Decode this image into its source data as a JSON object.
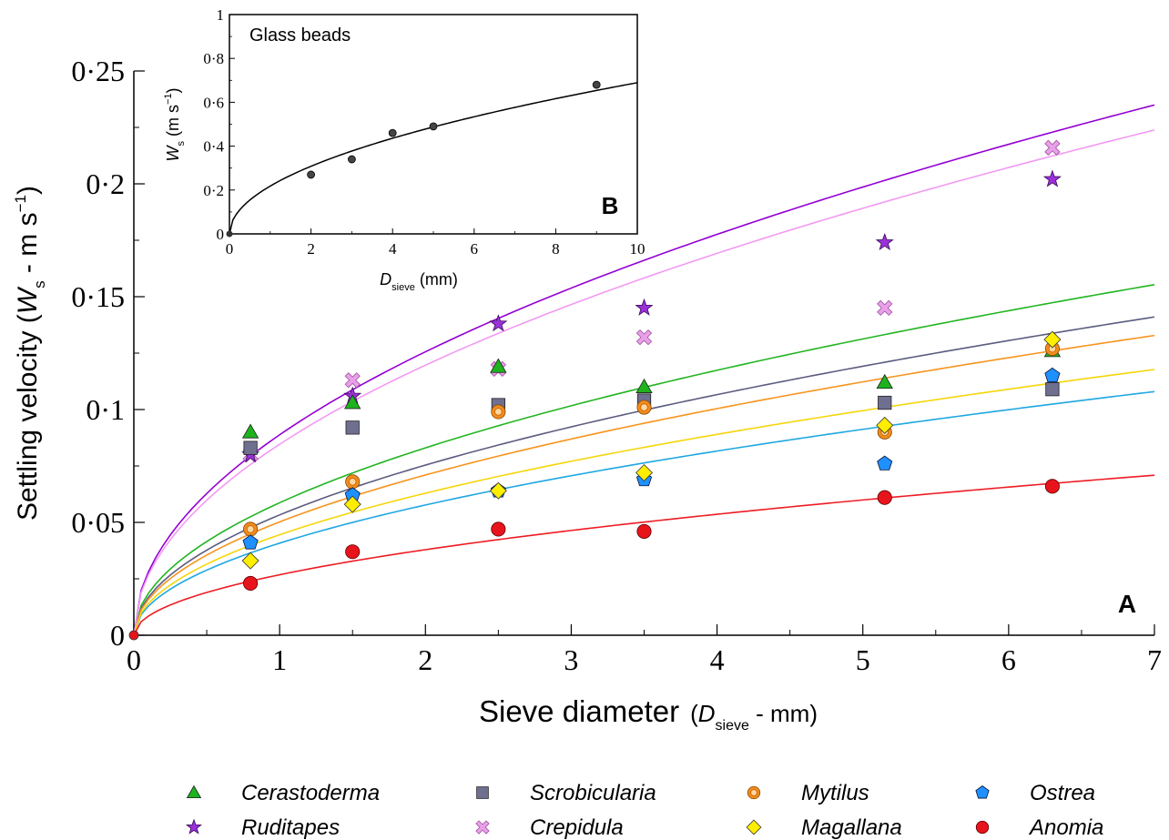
{
  "chart_data": [
    {
      "panel": "A",
      "type": "scatter",
      "xlabel": {
        "main": "Sieve diameter",
        "open": "(",
        "sym": "D",
        "sub": "sieve",
        "rest": " - mm)"
      },
      "ylabel": {
        "main": "Settling velocity (",
        "sym": "W",
        "sub": "s",
        "rest": " - m s",
        "sup": "−1",
        "close": ")"
      },
      "xlim": [
        0,
        7
      ],
      "ylim": [
        0,
        0.25
      ],
      "xticks": [
        "0",
        "1",
        "2",
        "3",
        "4",
        "5",
        "6",
        "7"
      ],
      "yticks": [
        "0",
        "0·05",
        "0·1",
        "0·15",
        "0·2",
        "0·25"
      ],
      "x": [
        0.8,
        1.5,
        2.5,
        3.5,
        5.15,
        6.3
      ],
      "grid": false,
      "legend_position": "bottom",
      "series": [
        {
          "name": "Cerastoderma",
          "marker": "triangle",
          "color": "#1db31d",
          "line_color": "#22b522",
          "values": [
            0.09,
            0.103,
            0.119,
            0.11,
            0.112,
            0.126
          ],
          "fit_coef": 0.0587
        },
        {
          "name": "Scrobicularia",
          "marker": "square",
          "color": "#6f6f90",
          "line_color": "#5c5c80",
          "values": [
            0.083,
            0.092,
            0.102,
            0.104,
            0.103,
            0.109
          ],
          "fit_coef": 0.0533
        },
        {
          "name": "Mytilus",
          "marker": "ring",
          "color": "#f08c1e",
          "line_color": "#f7941d",
          "values": [
            0.047,
            0.068,
            0.099,
            0.101,
            0.09,
            0.127
          ],
          "fit_coef": 0.0502
        },
        {
          "name": "Ostrea",
          "marker": "pentagon",
          "color": "#1e90ff",
          "line_color": "#1ea7e1",
          "values": [
            0.041,
            0.062,
            0.064,
            0.069,
            0.076,
            0.115
          ],
          "fit_coef": 0.0408
        },
        {
          "name": "Ruditapes",
          "marker": "star",
          "color": "#9b30d9",
          "line_color": "#9400d3",
          "values": [
            0.08,
            0.106,
            0.138,
            0.145,
            0.174,
            0.202
          ],
          "fit_coef": 0.0888
        },
        {
          "name": "Crepidula",
          "marker": "cross",
          "color": "#e8a0e8",
          "line_color": "#f29af2",
          "values": [
            0.08,
            0.113,
            0.118,
            0.132,
            0.145,
            0.216
          ],
          "fit_coef": 0.0846
        },
        {
          "name": "Magallana",
          "marker": "diamond",
          "color": "#ffee00",
          "line_color": "#f5d60a",
          "values": [
            0.033,
            0.058,
            0.064,
            0.072,
            0.093,
            0.131
          ],
          "fit_coef": 0.0445
        },
        {
          "name": "Anomia",
          "marker": "circle",
          "color": "#e8141c",
          "line_color": "#ee1c24",
          "values": [
            0.023,
            0.037,
            0.047,
            0.046,
            0.061,
            0.066
          ],
          "fit_coef": 0.0268
        }
      ]
    },
    {
      "panel": "B",
      "type": "scatter",
      "title": "Glass beads",
      "xlabel": {
        "sym": "D",
        "sub": "sieve",
        "rest": " (mm)"
      },
      "ylabel": {
        "sym": "W",
        "sub": "s",
        "rest": " (m s",
        "sup": "−1",
        "close": ")"
      },
      "xlim": [
        0,
        10
      ],
      "ylim": [
        0,
        1
      ],
      "xticks": [
        "0",
        "2",
        "4",
        "6",
        "8",
        "10"
      ],
      "yticks": [
        "0",
        "0·2",
        "0·4",
        "0·6",
        "0·8",
        "1"
      ],
      "points": [
        {
          "x": 2,
          "y": 0.27
        },
        {
          "x": 3,
          "y": 0.34
        },
        {
          "x": 4,
          "y": 0.46
        },
        {
          "x": 5,
          "y": 0.49
        },
        {
          "x": 9,
          "y": 0.68
        }
      ],
      "fit_coef": 0.218
    }
  ],
  "labels": {
    "panel_a": "A",
    "panel_b": "B"
  }
}
